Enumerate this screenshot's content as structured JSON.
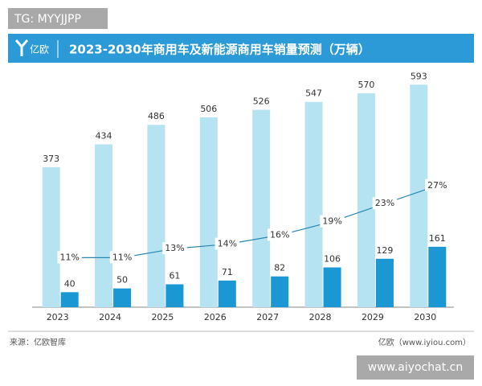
{
  "watermark_top": "TG: MYYJJPP",
  "logo": "亿欧",
  "source": "来源：亿欧智库",
  "credit": "亿欧（www.iyiou.com）",
  "watermark_bottom": "www.aiyochat.cn",
  "chart_data": {
    "type": "bar",
    "title": "2023-2030年商用车及新能源商用车销量预测（万辆）",
    "categories": [
      "2023",
      "2024",
      "2025",
      "2026",
      "2027",
      "2028",
      "2029",
      "2030"
    ],
    "series": [
      {
        "type": "bar",
        "color": "#b6e3f1",
        "values": [
          373,
          434,
          486,
          506,
          526,
          547,
          570,
          593
        ]
      },
      {
        "type": "bar",
        "color": "#1b98d3",
        "values": [
          40,
          50,
          61,
          71,
          82,
          106,
          129,
          161
        ]
      },
      {
        "type": "line",
        "axis": "y2",
        "color": "#2a87b3",
        "values": [
          11,
          11,
          13,
          14,
          16,
          19,
          23,
          27
        ],
        "value_labels": [
          "11%",
          "11%",
          "13%",
          "14%",
          "16%",
          "19%",
          "23%",
          "27%"
        ]
      }
    ],
    "ylim": [
      0,
      600
    ],
    "y2lim": [
      0,
      50
    ]
  }
}
